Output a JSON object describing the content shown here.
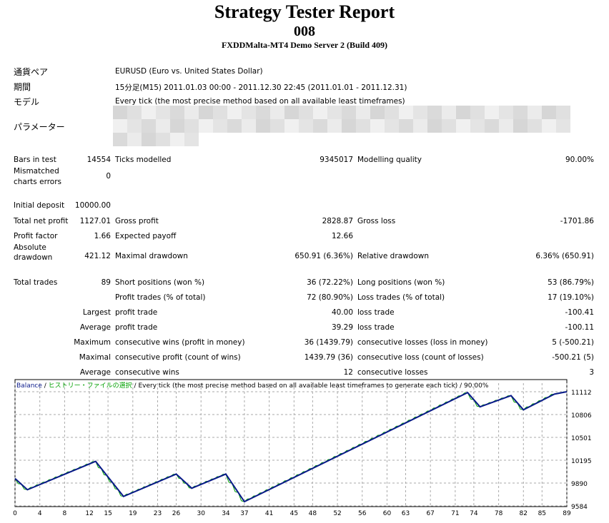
{
  "header": {
    "title": "Strategy Tester Report",
    "name": "008",
    "server": "FXDDMalta-MT4 Demo Server 2 (Build 409)"
  },
  "info": {
    "symbol_label": "通貨ペア",
    "symbol": "EURUSD (Euro vs. United States Dollar)",
    "period_label": "期間",
    "period": "15分足(M15) 2011.01.03 00:00 - 2011.12.30 22:45 (2011.01.01 - 2011.12.31)",
    "model_label": "モデル",
    "model": "Every tick (the most precise method based on all available least timeframes)",
    "params_label": "パラメーター"
  },
  "stats": {
    "bars_label": "Bars in test",
    "bars": "14554",
    "ticks_label": "Ticks modelled",
    "ticks": "9345017",
    "quality_label": "Modelling quality",
    "quality": "90.00%",
    "mismatch_label1": "Mismatched",
    "mismatch_label2": "charts errors",
    "mismatch": "0",
    "deposit_label": "Initial deposit",
    "deposit": "10000.00",
    "netprofit_label": "Total net profit",
    "netprofit": "1127.01",
    "grossprofit_label": "Gross profit",
    "grossprofit": "2828.87",
    "grossloss_label": "Gross loss",
    "grossloss": "-1701.86",
    "pf_label": "Profit factor",
    "pf": "1.66",
    "ep_label": "Expected payoff",
    "ep": "12.66",
    "absdd_label1": "Absolute",
    "absdd_label2": "drawdown",
    "absdd": "421.12",
    "maxdd_label": "Maximal drawdown",
    "maxdd": "650.91 (6.36%)",
    "reldd_label": "Relative drawdown",
    "reldd": "6.36% (650.91)",
    "trades_label": "Total trades",
    "trades": "89",
    "short_label": "Short positions (won %)",
    "short": "36 (72.22%)",
    "long_label": "Long positions (won %)",
    "long": "53 (86.79%)",
    "pt_label": "Profit trades (% of total)",
    "pt": "72 (80.90%)",
    "lt_label": "Loss trades (% of total)",
    "lt": "17 (19.10%)",
    "largest": "Largest",
    "largest_pt_label": "profit trade",
    "largest_pt": "40.00",
    "largest_lt_label": "loss trade",
    "largest_lt": "-100.41",
    "average": "Average",
    "avg_pt_label": "profit trade",
    "avg_pt": "39.29",
    "avg_lt_label": "loss trade",
    "avg_lt": "-100.11",
    "maximum": "Maximum",
    "mcw_label": "consecutive wins (profit in money)",
    "mcw": "36 (1439.79)",
    "mcl_label": "consecutive losses (loss in money)",
    "mcl": "5 (-500.21)",
    "maximal": "Maximal",
    "mcp_label": "consecutive profit (count of wins)",
    "mcp": "1439.79 (36)",
    "mclc_label": "consecutive loss (count of losses)",
    "mclc": "-500.21 (5)",
    "average2": "Average",
    "acw_label": "consecutive wins",
    "acw": "12",
    "acl_label": "consecutive losses",
    "acl": "3"
  },
  "chart_data": {
    "type": "line",
    "legend": {
      "balance": "Balance",
      "sep1": " / ",
      "history": "ヒストリー・ファイルの選択",
      "sep2": " / ",
      "desc": "Every tick (the most precise method based on all available least timeframes to generate each tick) / 90.00%"
    },
    "colors": {
      "balance": "#0a1a8a",
      "equity": "#00a000"
    },
    "ylim": [
      9584,
      11112
    ],
    "yticks": [
      "11112",
      "10806",
      "10501",
      "10195",
      "9890",
      "9584"
    ],
    "xticks": [
      "0",
      "4",
      "8",
      "12",
      "15",
      "19",
      "23",
      "26",
      "30",
      "34",
      "37",
      "41",
      "45",
      "48",
      "52",
      "56",
      "60",
      "63",
      "67",
      "71",
      "74",
      "78",
      "82",
      "85",
      "89"
    ],
    "xlim": [
      0,
      89
    ],
    "series": [
      {
        "name": "Balance",
        "points": [
          [
            0,
            9950
          ],
          [
            2,
            9800
          ],
          [
            13,
            10180
          ],
          [
            17.5,
            9710
          ],
          [
            26,
            10010
          ],
          [
            28.5,
            9820
          ],
          [
            34,
            10010
          ],
          [
            37,
            9640
          ],
          [
            73,
            11100
          ],
          [
            75,
            10910
          ],
          [
            80,
            11060
          ],
          [
            82,
            10870
          ],
          [
            87,
            11080
          ],
          [
            89,
            11112
          ]
        ]
      }
    ]
  }
}
